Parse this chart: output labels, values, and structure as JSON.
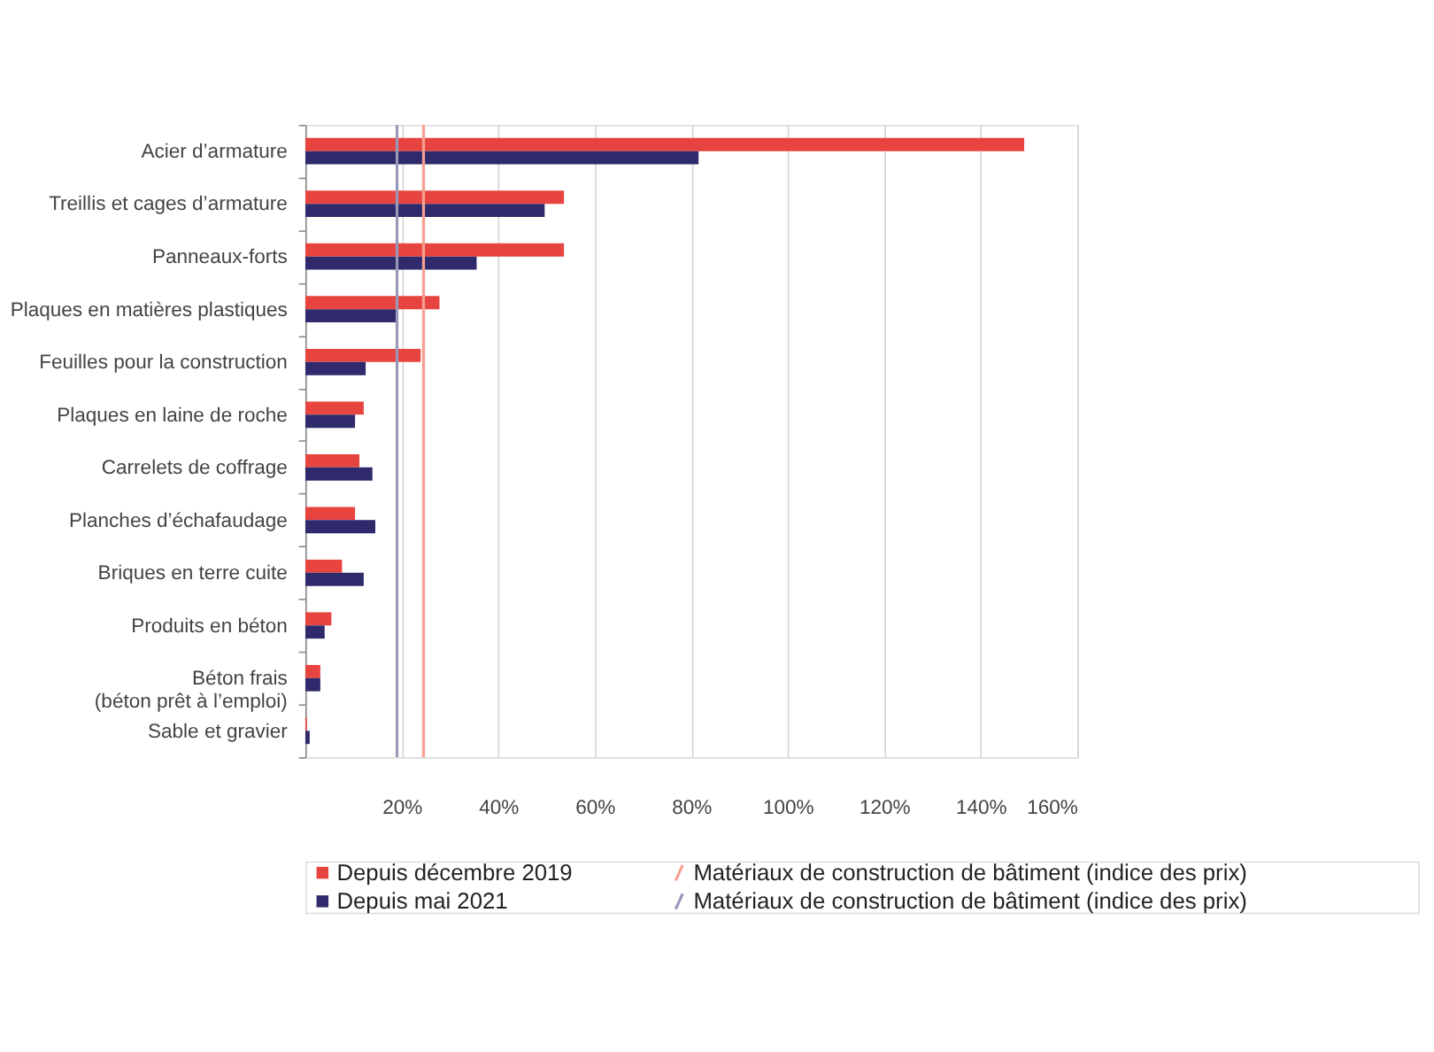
{
  "chart_data": {
    "type": "bar",
    "orientation": "horizontal",
    "categories": [
      "Acier d’armature",
      "Treillis et cages d’armature",
      "Panneaux-forts",
      "Plaques en matières plastiques",
      "Feuilles pour la construction",
      "Plaques en laine de roche",
      "Carrelets de coffrage",
      "Planches d’échafaudage",
      "Briques en terre cuite",
      "Produits en béton",
      "Béton frais\n(béton prêt à l’emploi)",
      "Sable et gravier"
    ],
    "series": [
      {
        "name": "Depuis décembre 2019",
        "color": "#e8443f",
        "values": [
          149,
          53.6,
          53.6,
          27.8,
          23.9,
          12.1,
          11.2,
          10.3,
          7.6,
          5.4,
          3.1,
          0.3
        ]
      },
      {
        "name": "Depuis mai 2021",
        "color": "#2e2a6b",
        "values": [
          81.5,
          49.6,
          35.5,
          18.8,
          12.5,
          10.3,
          13.9,
          14.5,
          12.1,
          4.0,
          3.1,
          0.9
        ]
      }
    ],
    "ref_lines": [
      {
        "axis": "x",
        "value": 24.5,
        "label": "Matériaux de construction de bâtiment (indice des prix)",
        "color": "#f4a090"
      },
      {
        "axis": "x",
        "value": 19,
        "label": "Matériaux de construction de bâtiment (indice des prix)",
        "color": "#9a98b8"
      }
    ],
    "xlim": [
      0,
      160
    ],
    "xticks": [
      {
        "value": 20,
        "label": "20%"
      },
      {
        "value": 40,
        "label": "40%"
      },
      {
        "value": 60,
        "label": "60%"
      },
      {
        "value": 80,
        "label": "80%"
      },
      {
        "value": 100,
        "label": "100%"
      },
      {
        "value": 120,
        "label": "120%"
      },
      {
        "value": 140,
        "label": "140%"
      },
      {
        "value": 160,
        "label": "160%"
      }
    ],
    "grid": "x",
    "legend": "bottom"
  }
}
